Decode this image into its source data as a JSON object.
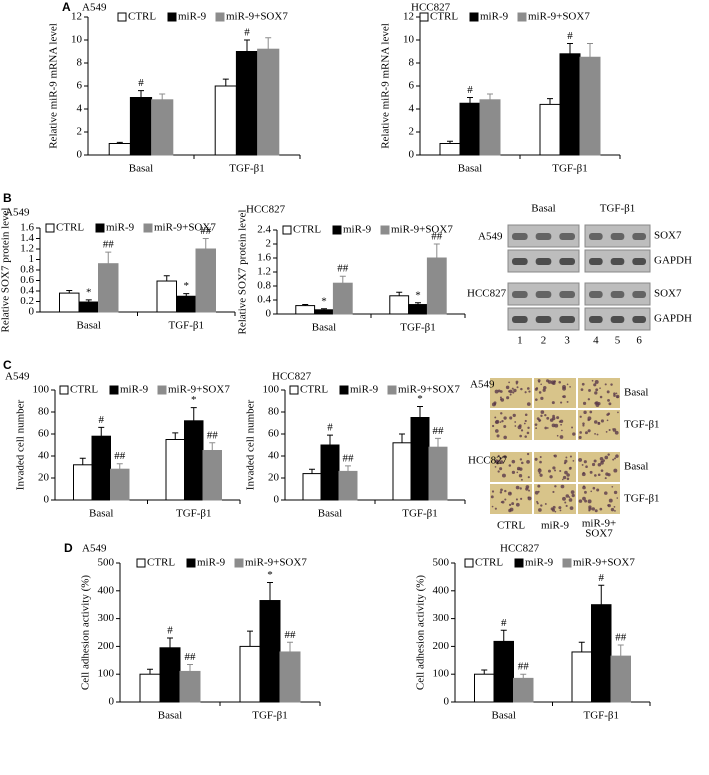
{
  "panel_labels": [
    "A",
    "B",
    "C",
    "D"
  ],
  "chart_data": [
    {
      "type": "bar",
      "title": "A549",
      "ylabel": "Relative miR-9 mRNA level",
      "categories": [
        "Basal",
        "TGF-β1"
      ],
      "ylim": [
        0,
        12
      ],
      "yticks": [
        0,
        2,
        4,
        6,
        8,
        10,
        12
      ],
      "series": [
        {
          "name": "CTRL",
          "color": "#ffffff",
          "edgecolor": "#000000",
          "values": [
            1.0,
            6.0
          ],
          "errors": [
            0.1,
            0.6
          ],
          "markers": [
            null,
            null
          ]
        },
        {
          "name": "miR-9",
          "color": "#000000",
          "edgecolor": "#000000",
          "values": [
            5.0,
            9.0
          ],
          "errors": [
            0.6,
            1.0
          ],
          "markers": [
            "#",
            "#"
          ]
        },
        {
          "name": "miR-9+SOX7",
          "color": "#8c8c8c",
          "edgecolor": "#8c8c8c",
          "values": [
            4.8,
            9.2
          ],
          "errors": [
            0.5,
            1.0
          ],
          "markers": [
            null,
            null
          ]
        }
      ]
    },
    {
      "type": "bar",
      "title": "HCC827",
      "ylabel": "Relative miR-9 mRNA level",
      "categories": [
        "Basal",
        "TGF-β1"
      ],
      "ylim": [
        0,
        12
      ],
      "yticks": [
        0,
        2,
        4,
        6,
        8,
        10,
        12
      ],
      "series": [
        {
          "name": "CTRL",
          "color": "#ffffff",
          "edgecolor": "#000000",
          "values": [
            1.0,
            4.4
          ],
          "errors": [
            0.2,
            0.5
          ],
          "markers": [
            null,
            null
          ]
        },
        {
          "name": "miR-9",
          "color": "#000000",
          "edgecolor": "#000000",
          "values": [
            4.5,
            8.8
          ],
          "errors": [
            0.5,
            0.9
          ],
          "markers": [
            "#",
            "#"
          ]
        },
        {
          "name": "miR-9+SOX7",
          "color": "#8c8c8c",
          "edgecolor": "#8c8c8c",
          "values": [
            4.8,
            8.5
          ],
          "errors": [
            0.5,
            1.2
          ],
          "markers": [
            null,
            null
          ]
        }
      ]
    },
    {
      "type": "bar",
      "title": "A549",
      "ylabel": "Relative SOX7 protein level",
      "categories": [
        "Basal",
        "TGF-β1"
      ],
      "ylim": [
        0,
        1.6
      ],
      "yticks": [
        0,
        0.2,
        0.4,
        0.6,
        0.8,
        1,
        1.2,
        1.4,
        1.6
      ],
      "series": [
        {
          "name": "CTRL",
          "color": "#ffffff",
          "edgecolor": "#000000",
          "values": [
            0.36,
            0.59
          ],
          "errors": [
            0.05,
            0.1
          ],
          "markers": [
            null,
            null
          ]
        },
        {
          "name": "miR-9",
          "color": "#000000",
          "edgecolor": "#000000",
          "values": [
            0.19,
            0.3
          ],
          "errors": [
            0.04,
            0.05
          ],
          "markers": [
            "*",
            "*"
          ]
        },
        {
          "name": "miR-9+SOX7",
          "color": "#8c8c8c",
          "edgecolor": "#8c8c8c",
          "values": [
            0.92,
            1.2
          ],
          "errors": [
            0.22,
            0.2
          ],
          "markers": [
            "##",
            "##"
          ]
        }
      ]
    },
    {
      "type": "bar",
      "title": "HCC827",
      "ylabel": "Relative SOX7 protein level",
      "categories": [
        "Basal",
        "TGF-β1"
      ],
      "ylim": [
        0,
        2.4
      ],
      "yticks": [
        0,
        0.4,
        0.8,
        1.2,
        1.6,
        2,
        2.4
      ],
      "series": [
        {
          "name": "CTRL",
          "color": "#ffffff",
          "edgecolor": "#000000",
          "values": [
            0.24,
            0.52
          ],
          "errors": [
            0.03,
            0.1
          ],
          "markers": [
            null,
            null
          ]
        },
        {
          "name": "miR-9",
          "color": "#000000",
          "edgecolor": "#000000",
          "values": [
            0.12,
            0.27
          ],
          "errors": [
            0.03,
            0.05
          ],
          "markers": [
            "*",
            "*"
          ]
        },
        {
          "name": "miR-9+SOX7",
          "color": "#8c8c8c",
          "edgecolor": "#8c8c8c",
          "values": [
            0.88,
            1.6
          ],
          "errors": [
            0.2,
            0.4
          ],
          "markers": [
            "##",
            "##"
          ]
        }
      ]
    },
    {
      "type": "bar",
      "title": "A549",
      "ylabel": "Invaded cell number",
      "categories": [
        "Basal",
        "TGF-β1"
      ],
      "ylim": [
        0,
        100
      ],
      "yticks": [
        0,
        20,
        40,
        60,
        80,
        100
      ],
      "series": [
        {
          "name": "CTRL",
          "color": "#ffffff",
          "edgecolor": "#000000",
          "values": [
            32,
            55
          ],
          "errors": [
            6,
            6
          ],
          "markers": [
            null,
            null
          ]
        },
        {
          "name": "miR-9",
          "color": "#000000",
          "edgecolor": "#000000",
          "values": [
            58,
            72
          ],
          "errors": [
            8,
            12
          ],
          "markers": [
            "#",
            "*"
          ]
        },
        {
          "name": "miR-9+SOX7",
          "color": "#8c8c8c",
          "edgecolor": "#8c8c8c",
          "values": [
            28,
            45
          ],
          "errors": [
            5,
            7
          ],
          "markers": [
            "##",
            "##"
          ]
        }
      ]
    },
    {
      "type": "bar",
      "title": "HCC827",
      "ylabel": "Invaded cell number",
      "categories": [
        "Basal",
        "TGF-β1"
      ],
      "ylim": [
        0,
        100
      ],
      "yticks": [
        0,
        20,
        40,
        60,
        80,
        100
      ],
      "series": [
        {
          "name": "CTRL",
          "color": "#ffffff",
          "edgecolor": "#000000",
          "values": [
            24,
            52
          ],
          "errors": [
            4,
            8
          ],
          "markers": [
            null,
            null
          ]
        },
        {
          "name": "miR-9",
          "color": "#000000",
          "edgecolor": "#000000",
          "values": [
            50,
            75
          ],
          "errors": [
            9,
            10
          ],
          "markers": [
            "#",
            "*"
          ]
        },
        {
          "name": "miR-9+SOX7",
          "color": "#8c8c8c",
          "edgecolor": "#8c8c8c",
          "values": [
            26,
            48
          ],
          "errors": [
            5,
            8
          ],
          "markers": [
            "##",
            "##"
          ]
        }
      ]
    },
    {
      "type": "bar",
      "title": "A549",
      "ylabel": "Cell adhesion activity (%)",
      "categories": [
        "Basal",
        "TGF-β1"
      ],
      "ylim": [
        0,
        500
      ],
      "yticks": [
        0,
        100,
        200,
        300,
        400,
        500
      ],
      "series": [
        {
          "name": "CTRL",
          "color": "#ffffff",
          "edgecolor": "#000000",
          "values": [
            100,
            200
          ],
          "errors": [
            18,
            55
          ],
          "markers": [
            null,
            null
          ]
        },
        {
          "name": "miR-9",
          "color": "#000000",
          "edgecolor": "#000000",
          "values": [
            195,
            365
          ],
          "errors": [
            35,
            65
          ],
          "markers": [
            "#",
            "*"
          ]
        },
        {
          "name": "miR-9+SOX7",
          "color": "#8c8c8c",
          "edgecolor": "#8c8c8c",
          "values": [
            110,
            180
          ],
          "errors": [
            25,
            35
          ],
          "markers": [
            "##",
            "##"
          ]
        }
      ]
    },
    {
      "type": "bar",
      "title": "HCC827",
      "ylabel": "Cell adhesion activity (%)",
      "categories": [
        "Basal",
        "TGF-β1"
      ],
      "ylim": [
        0,
        500
      ],
      "yticks": [
        0,
        100,
        200,
        300,
        400,
        500
      ],
      "series": [
        {
          "name": "CTRL",
          "color": "#ffffff",
          "edgecolor": "#000000",
          "values": [
            100,
            180
          ],
          "errors": [
            15,
            35
          ],
          "markers": [
            null,
            null
          ]
        },
        {
          "name": "miR-9",
          "color": "#000000",
          "edgecolor": "#000000",
          "values": [
            218,
            350
          ],
          "errors": [
            40,
            70
          ],
          "markers": [
            "#",
            "#"
          ]
        },
        {
          "name": "miR-9+SOX7",
          "color": "#8c8c8c",
          "edgecolor": "#8c8c8c",
          "values": [
            85,
            165
          ],
          "errors": [
            15,
            40
          ],
          "markers": [
            "##",
            "##"
          ]
        }
      ]
    }
  ],
  "blot": {
    "conditions": [
      "Basal",
      "TGF-β1"
    ],
    "cell_lines": [
      "A549",
      "HCC827"
    ],
    "proteins": [
      "SOX7",
      "GAPDH"
    ],
    "lanes": [
      "1",
      "2",
      "3",
      "4",
      "5",
      "6"
    ]
  },
  "invasion_images": {
    "cell_lines": [
      "A549",
      "HCC827"
    ],
    "conditions": [
      "Basal",
      "TGF-β1"
    ],
    "groups": [
      "CTRL",
      "miR-9",
      [
        "miR-9+",
        "SOX7"
      ]
    ]
  }
}
